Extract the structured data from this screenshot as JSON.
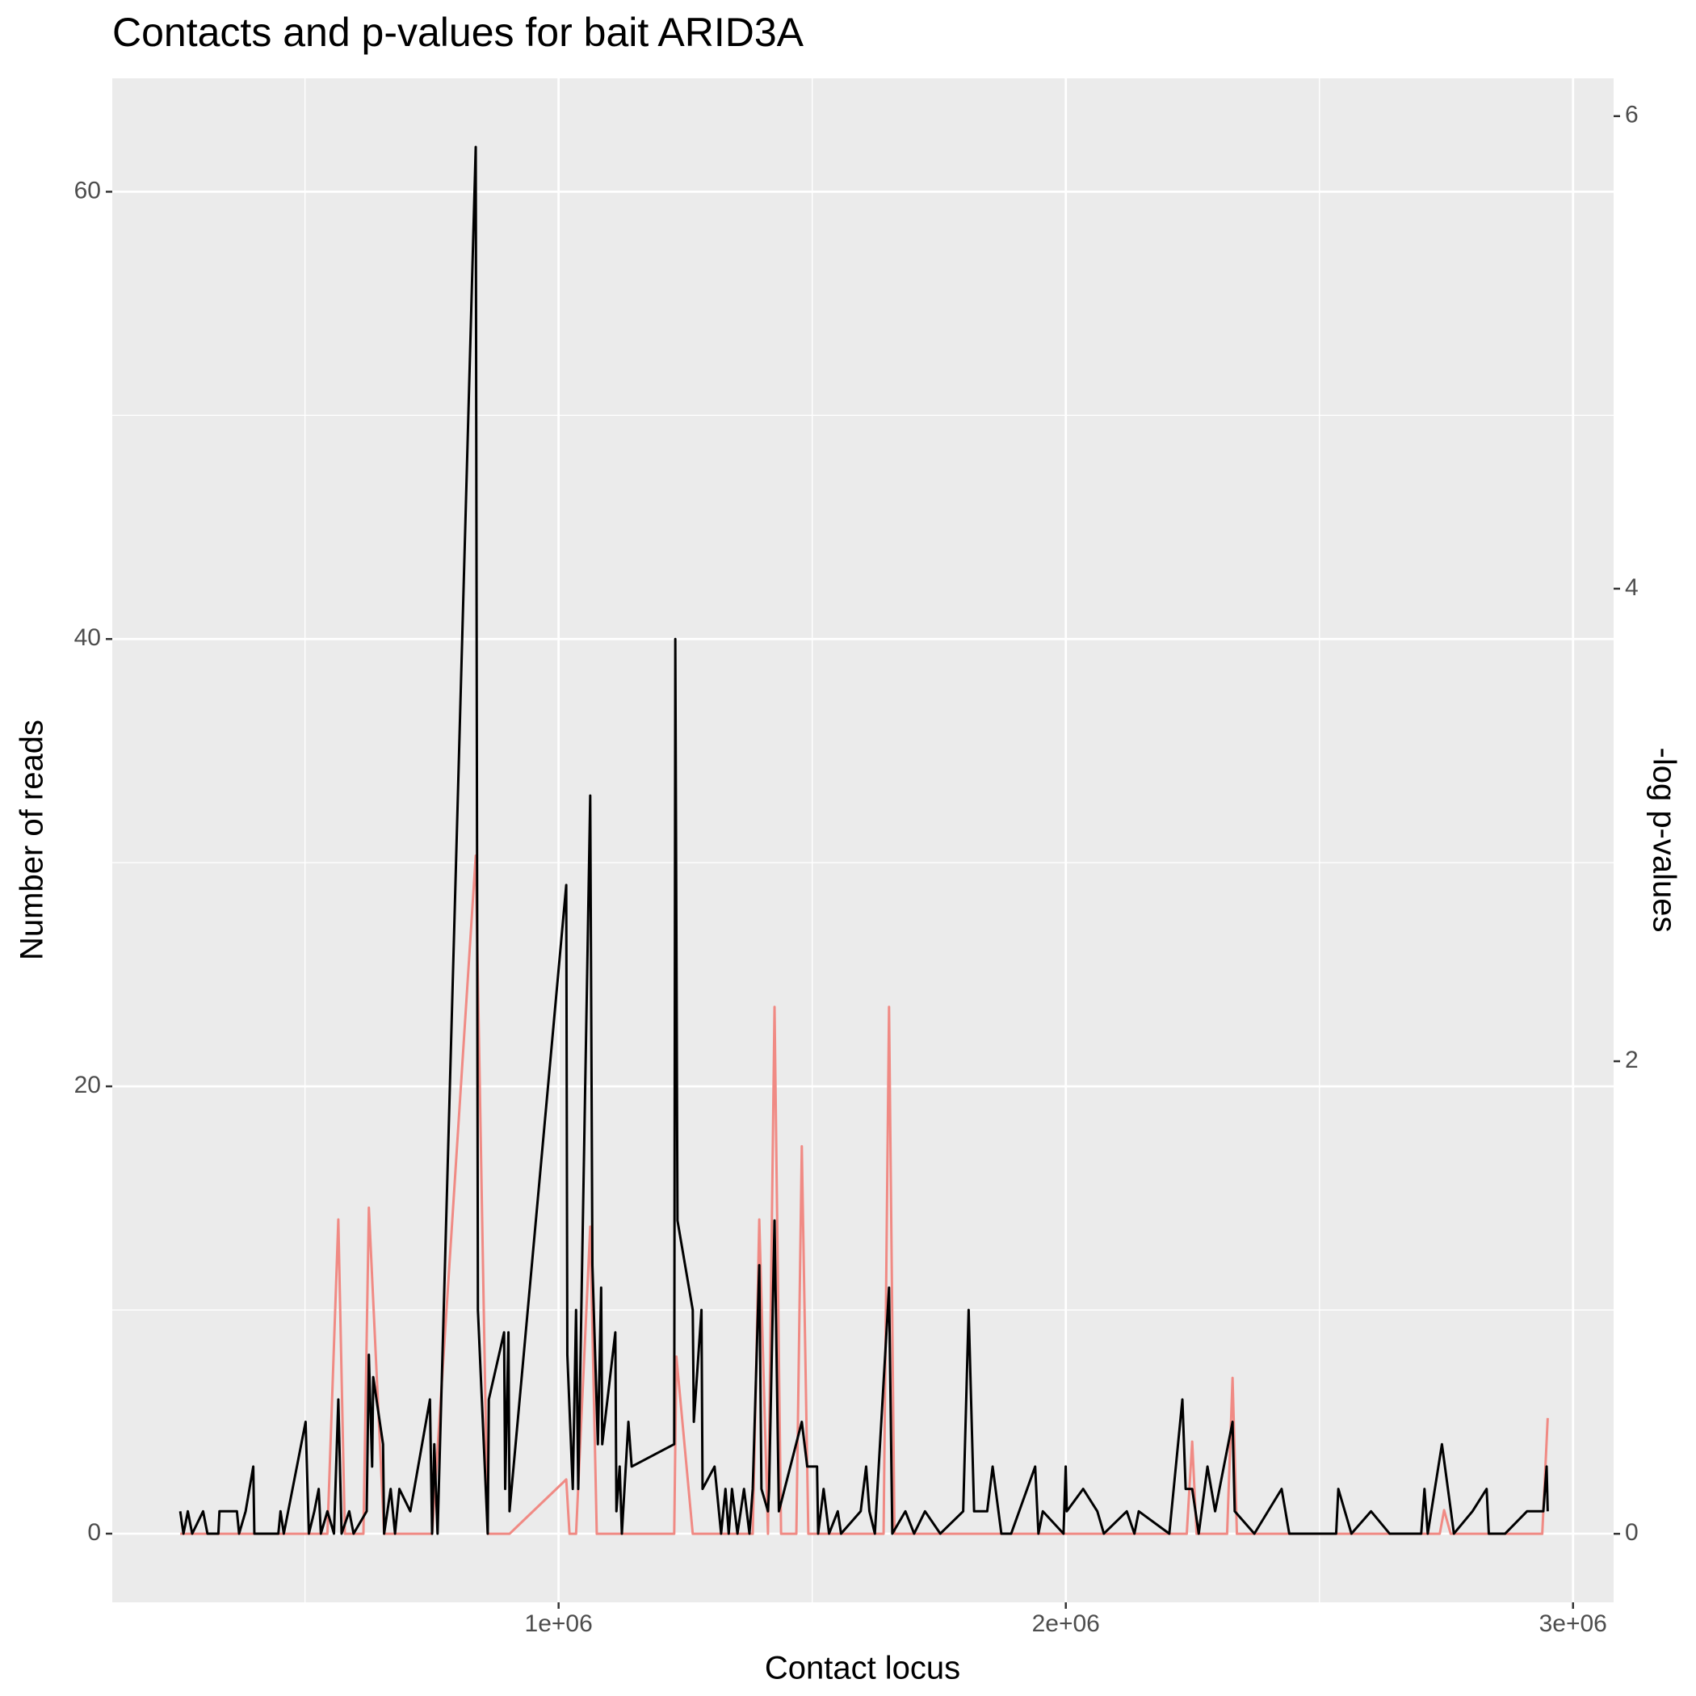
{
  "chart_data": {
    "type": "line",
    "title": "Contacts and p-values for bait ARID3A",
    "x_label": "Contact locus",
    "y_label": "Number of reads",
    "y2_label": "-log p-values",
    "xlim": [
      120000,
      3080000
    ],
    "xticks": [
      {
        "value": 1000000,
        "label": "1e+06"
      },
      {
        "value": 2000000,
        "label": "2e+06"
      },
      {
        "value": 3000000,
        "label": "3e+06"
      }
    ],
    "ylim": [
      -3.07,
      65.07
    ],
    "yticks": [
      0,
      20,
      40,
      60
    ],
    "y2lim": [
      -0.29,
      6.16
    ],
    "y2ticks": [
      0,
      2,
      4,
      6
    ],
    "grid": true,
    "series": [
      {
        "color": "#f08a84",
        "axis": "y2",
        "x": [
          254000,
          544200,
          565700,
          578600,
          615150,
          625900,
          656000,
          750600,
          836600,
          860250,
          903250,
          1015050,
          1021500,
          1034400,
          1062350,
          1075250,
          1227900,
          1232200,
          1264450,
          1382700,
          1395600,
          1412800,
          1425700,
          1438600,
          1468700,
          1479450,
          1492350,
          1640700,
          1651450,
          1662200,
          2238400,
          2249150,
          2257750,
          2317950,
          2328700,
          2337300,
          2737200,
          2745800,
          2758700,
          2939300,
          2950050
        ],
        "values": [
          0,
          0,
          1.33,
          0,
          0,
          1.38,
          0,
          0,
          2.87,
          0,
          0,
          0.23,
          0,
          0,
          1.3,
          0,
          0,
          0.75,
          0,
          0,
          1.33,
          0,
          2.23,
          0,
          0,
          1.64,
          0,
          0,
          2.23,
          0,
          0,
          0.39,
          0,
          0,
          0.66,
          0,
          0,
          0.1,
          0,
          0,
          0.49
        ]
      },
      {
        "color": "#000000",
        "axis": "y",
        "x": [
          254000,
          260400,
          269000,
          277600,
          299100,
          307700,
          329200,
          331350,
          365750,
          370050,
          382950,
          398000,
          400150,
          447450,
          451750,
          458200,
          501200,
          507650,
          518400,
          527000,
          531300,
          544200,
          557100,
          565700,
          572150,
          587200,
          595800,
          621600,
          625900,
          632350,
          634500,
          653850,
          656000,
          668900,
          677500,
          686100,
          707600,
          746300,
          750600,
          754900,
          761350,
          836600,
          840900,
          860250,
          862400,
          892500,
          894650,
          901100,
          903250,
          1015050,
          1017200,
          1027950,
          1034400,
          1038700,
          1062350,
          1066650,
          1077400,
          1083850,
          1086000,
          1111800,
          1113950,
          1120400,
          1124700,
          1137600,
          1144050,
          1227900,
          1230050,
          1234350,
          1264450,
          1266600,
          1281650,
          1283800,
          1307450,
          1320350,
          1328950,
          1335400,
          1341850,
          1352600,
          1365500,
          1376250,
          1382700,
          1395600,
          1399900,
          1412800,
          1414950,
          1425700,
          1434300,
          1479450,
          1490200,
          1509550,
          1511700,
          1522450,
          1533200,
          1550400,
          1556850,
          1595550,
          1606300,
          1612750,
          1623500,
          1651450,
          1657900,
          1683700,
          1700900,
          1722400,
          1752500,
          1797650,
          1808400,
          1819150,
          1825600,
          1844950,
          1855700,
          1872900,
          1892250,
          1939550,
          1946000,
          1954600,
          1995450,
          1999750,
          2001900,
          2034150,
          2062100,
          2075000,
          2120150,
          2135200,
          2143800,
          2204000,
          2229800,
          2236250,
          2249150,
          2262050,
          2279250,
          2294300,
          2328700,
          2333000,
          2371700,
          2425450,
          2440500,
          2532950,
          2537250,
          2563050,
          2601750,
          2638300,
          2700650,
          2707100,
          2713550,
          2741500,
          2765150,
          2801700,
          2829650,
          2833950,
          2866200,
          2909200,
          2941450,
          2947900,
          2950050
        ],
        "values": [
          1,
          0,
          1,
          0,
          1,
          0,
          0,
          1,
          1,
          0,
          1,
          3,
          0,
          0,
          1,
          0,
          5,
          0,
          1,
          2,
          0,
          1,
          0,
          6,
          0,
          1,
          0,
          1,
          8,
          3,
          7,
          4,
          0,
          2,
          0,
          2,
          1,
          6,
          0,
          4,
          0,
          62,
          10,
          0,
          6,
          9,
          2,
          9,
          1,
          29,
          8,
          2,
          10,
          2,
          33,
          12,
          4,
          11,
          4,
          9,
          1,
          3,
          0,
          5,
          3,
          4,
          40,
          14,
          10,
          5,
          10,
          2,
          3,
          0,
          2,
          0,
          2,
          0,
          2,
          0,
          2,
          12,
          2,
          1,
          2,
          14,
          1,
          5,
          3,
          3,
          0,
          2,
          0,
          1,
          0,
          1,
          3,
          1,
          0,
          11,
          0,
          1,
          0,
          1,
          0,
          1,
          10,
          1,
          1,
          1,
          3,
          0,
          0,
          3,
          0,
          1,
          0,
          3,
          1,
          2,
          1,
          0,
          1,
          0,
          1,
          0,
          6,
          2,
          2,
          0,
          3,
          1,
          5,
          1,
          0,
          2,
          0,
          0,
          2,
          0,
          1,
          0,
          0,
          2,
          0,
          4,
          0,
          1,
          2,
          0,
          0,
          1,
          1,
          3,
          1
        ]
      }
    ]
  }
}
